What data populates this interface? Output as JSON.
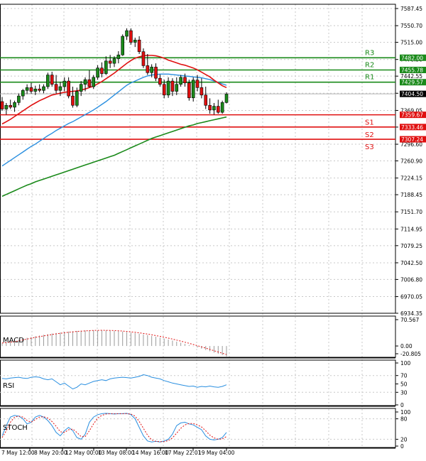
{
  "chart_data": {
    "type": "candlestick",
    "main": {
      "ylim": [
        6934.35,
        7587.45
      ],
      "y_ticks": [
        "7587.45",
        "7550.70",
        "7515.00",
        "7478.30",
        "7442.55",
        "7405.85",
        "7369.05",
        "7333.35",
        "7296.60",
        "7260.90",
        "7224.15",
        "7188.45",
        "7151.70",
        "7114.95",
        "7079.25",
        "7042.50",
        "7006.80",
        "6970.05",
        "6934.35"
      ],
      "current_price": {
        "label": "7404.50",
        "value": 7404.5,
        "color": "#000000"
      },
      "levels": [
        {
          "name": "R3",
          "value": 7482.0,
          "label": "7482.00",
          "color": "#1a8a1a"
        },
        {
          "name": "R2",
          "value": 7455.78,
          "label": "7455.78",
          "color": "#1a8a1a"
        },
        {
          "name": "R1",
          "value": 7429.57,
          "label": "7429.57",
          "color": "#1a8a1a"
        },
        {
          "name": "S1",
          "value": 7359.67,
          "label": "7359.67",
          "color": "#e01010"
        },
        {
          "name": "S2",
          "value": 7333.46,
          "label": "7333.46",
          "color": "#e01010"
        },
        {
          "name": "S3",
          "value": 7307.24,
          "label": "7307.24",
          "color": "#e01010"
        }
      ],
      "candles": [
        [
          7388,
          7398,
          7368,
          7372
        ],
        [
          7372,
          7385,
          7360,
          7380
        ],
        [
          7380,
          7392,
          7372,
          7376
        ],
        [
          7376,
          7390,
          7366,
          7386
        ],
        [
          7386,
          7405,
          7380,
          7400
        ],
        [
          7400,
          7415,
          7392,
          7412
        ],
        [
          7412,
          7425,
          7404,
          7418
        ],
        [
          7418,
          7428,
          7405,
          7410
        ],
        [
          7410,
          7422,
          7402,
          7415
        ],
        [
          7415,
          7425,
          7408,
          7412
        ],
        [
          7412,
          7425,
          7406,
          7420
        ],
        [
          7420,
          7450,
          7415,
          7445
        ],
        [
          7445,
          7452,
          7420,
          7425
        ],
        [
          7425,
          7445,
          7405,
          7412
        ],
        [
          7412,
          7430,
          7400,
          7420
        ],
        [
          7420,
          7440,
          7410,
          7432
        ],
        [
          7432,
          7440,
          7395,
          7400
        ],
        [
          7400,
          7420,
          7375,
          7380
        ],
        [
          7380,
          7418,
          7376,
          7410
        ],
        [
          7410,
          7432,
          7400,
          7425
        ],
        [
          7425,
          7440,
          7410,
          7435
        ],
        [
          7435,
          7455,
          7418,
          7420
        ],
        [
          7420,
          7445,
          7415,
          7440
        ],
        [
          7440,
          7466,
          7435,
          7460
        ],
        [
          7460,
          7472,
          7440,
          7448
        ],
        [
          7448,
          7485,
          7445,
          7475
        ],
        [
          7475,
          7488,
          7460,
          7470
        ],
        [
          7470,
          7485,
          7462,
          7480
        ],
        [
          7480,
          7496,
          7470,
          7488
        ],
        [
          7488,
          7532,
          7486,
          7528
        ],
        [
          7528,
          7545,
          7520,
          7540
        ],
        [
          7540,
          7545,
          7510,
          7515
        ],
        [
          7515,
          7525,
          7505,
          7520
        ],
        [
          7520,
          7528,
          7490,
          7495
        ],
        [
          7495,
          7502,
          7460,
          7465
        ],
        [
          7465,
          7490,
          7445,
          7450
        ],
        [
          7450,
          7468,
          7440,
          7462
        ],
        [
          7462,
          7470,
          7432,
          7438
        ],
        [
          7438,
          7446,
          7420,
          7425
        ],
        [
          7425,
          7435,
          7395,
          7402
        ],
        [
          7402,
          7440,
          7396,
          7432
        ],
        [
          7432,
          7438,
          7400,
          7410
        ],
        [
          7410,
          7440,
          7402,
          7425
        ],
        [
          7425,
          7445,
          7420,
          7440
        ],
        [
          7440,
          7448,
          7420,
          7428
        ],
        [
          7428,
          7435,
          7390,
          7396
        ],
        [
          7396,
          7440,
          7388,
          7434
        ],
        [
          7434,
          7445,
          7410,
          7418
        ],
        [
          7418,
          7438,
          7395,
          7402
        ],
        [
          7402,
          7420,
          7372,
          7380
        ],
        [
          7380,
          7395,
          7362,
          7370
        ],
        [
          7370,
          7385,
          7360,
          7378
        ],
        [
          7378,
          7392,
          7362,
          7365
        ],
        [
          7365,
          7390,
          7362,
          7386
        ],
        [
          7386,
          7408,
          7384,
          7404
        ]
      ],
      "ma_red": [
        7340,
        7345,
        7350,
        7356,
        7362,
        7368,
        7374,
        7380,
        7385,
        7390,
        7394,
        7398,
        7402,
        7404,
        7406,
        7408,
        7409,
        7410,
        7411,
        7413,
        7415,
        7418,
        7421,
        7426,
        7431,
        7437,
        7443,
        7449,
        7456,
        7463,
        7470,
        7476,
        7481,
        7484,
        7486,
        7487,
        7487,
        7486,
        7484,
        7481,
        7477,
        7474,
        7471,
        7468,
        7466,
        7463,
        7460,
        7456,
        7451,
        7446,
        7441,
        7434,
        7428,
        7422,
        7418
      ],
      "ma_blue": [
        7250,
        7256,
        7262,
        7268,
        7274,
        7280,
        7286,
        7292,
        7297,
        7303,
        7309,
        7315,
        7320,
        7326,
        7331,
        7336,
        7341,
        7345,
        7350,
        7355,
        7360,
        7365,
        7370,
        7376,
        7382,
        7388,
        7395,
        7402,
        7409,
        7416,
        7423,
        7428,
        7432,
        7436,
        7440,
        7443,
        7445,
        7446,
        7447,
        7447,
        7447,
        7446,
        7445,
        7444,
        7443,
        7442,
        7441,
        7440,
        7439,
        7437,
        7435,
        7432,
        7429,
        7426,
        7423
      ],
      "ma_green": [
        7185,
        7189,
        7193,
        7197,
        7201,
        7205,
        7209,
        7212,
        7216,
        7219,
        7222,
        7225,
        7228,
        7231,
        7234,
        7237,
        7240,
        7243,
        7246,
        7249,
        7252,
        7255,
        7258,
        7261,
        7264,
        7267,
        7270,
        7273,
        7277,
        7281,
        7285,
        7289,
        7293,
        7297,
        7301,
        7305,
        7309,
        7312,
        7315,
        7318,
        7321,
        7324,
        7327,
        7330,
        7333,
        7336,
        7338,
        7341,
        7343,
        7345,
        7347,
        7349,
        7351,
        7353,
        7355
      ]
    },
    "macd": {
      "label": "MACD",
      "y_ticks": [
        "70.567",
        "0.00",
        "-20.805"
      ],
      "ylim": [
        -20.805,
        70.567
      ]
    },
    "rsi": {
      "label": "RSI",
      "y_ticks": [
        "100",
        "70",
        "50",
        "30",
        "0"
      ],
      "ylim": [
        0,
        100
      ],
      "values": [
        63,
        62,
        64,
        65,
        66,
        64,
        63,
        66,
        67,
        66,
        62,
        60,
        62,
        55,
        48,
        52,
        45,
        38,
        42,
        50,
        48,
        52,
        56,
        58,
        60,
        58,
        62,
        64,
        65,
        66,
        65,
        64,
        66,
        68,
        72,
        70,
        66,
        64,
        62,
        58,
        55,
        52,
        50,
        48,
        46,
        44,
        45,
        42,
        44,
        43,
        45,
        43,
        42,
        44,
        48
      ]
    },
    "stoch": {
      "label": "STOCH",
      "y_ticks": [
        "100",
        "80",
        "20",
        "0"
      ],
      "ylim": [
        0,
        100
      ],
      "k": [
        30,
        60,
        85,
        90,
        88,
        80,
        65,
        70,
        85,
        90,
        85,
        75,
        60,
        40,
        30,
        45,
        55,
        45,
        25,
        20,
        35,
        70,
        85,
        92,
        95,
        96,
        95,
        94,
        95,
        95,
        96,
        92,
        80,
        55,
        30,
        15,
        12,
        14,
        12,
        15,
        20,
        35,
        60,
        68,
        70,
        65,
        62,
        55,
        48,
        30,
        20,
        18,
        20,
        25,
        40
      ],
      "d": [
        25,
        45,
        70,
        85,
        88,
        85,
        75,
        70,
        78,
        85,
        86,
        82,
        72,
        58,
        42,
        40,
        48,
        50,
        40,
        28,
        28,
        45,
        65,
        82,
        90,
        94,
        95,
        95,
        95,
        95,
        95,
        94,
        88,
        72,
        52,
        32,
        18,
        14,
        13,
        13,
        16,
        24,
        38,
        52,
        62,
        66,
        66,
        62,
        56,
        45,
        32,
        24,
        20,
        21,
        28
      ]
    },
    "x_labels": [
      "7 May 12:00",
      "8 May 20:00",
      "12 May 00:00",
      "13 May 08:00",
      "14 May 16:00",
      "17 May 22:01",
      "19 May 04:00"
    ],
    "colors": {
      "up": "#1a8a1a",
      "down": "#e01010",
      "ma_red": "#e01010",
      "ma_blue": "#2a8fe0",
      "ma_green": "#1a8a1a",
      "grid": "#c8c8c8"
    }
  }
}
